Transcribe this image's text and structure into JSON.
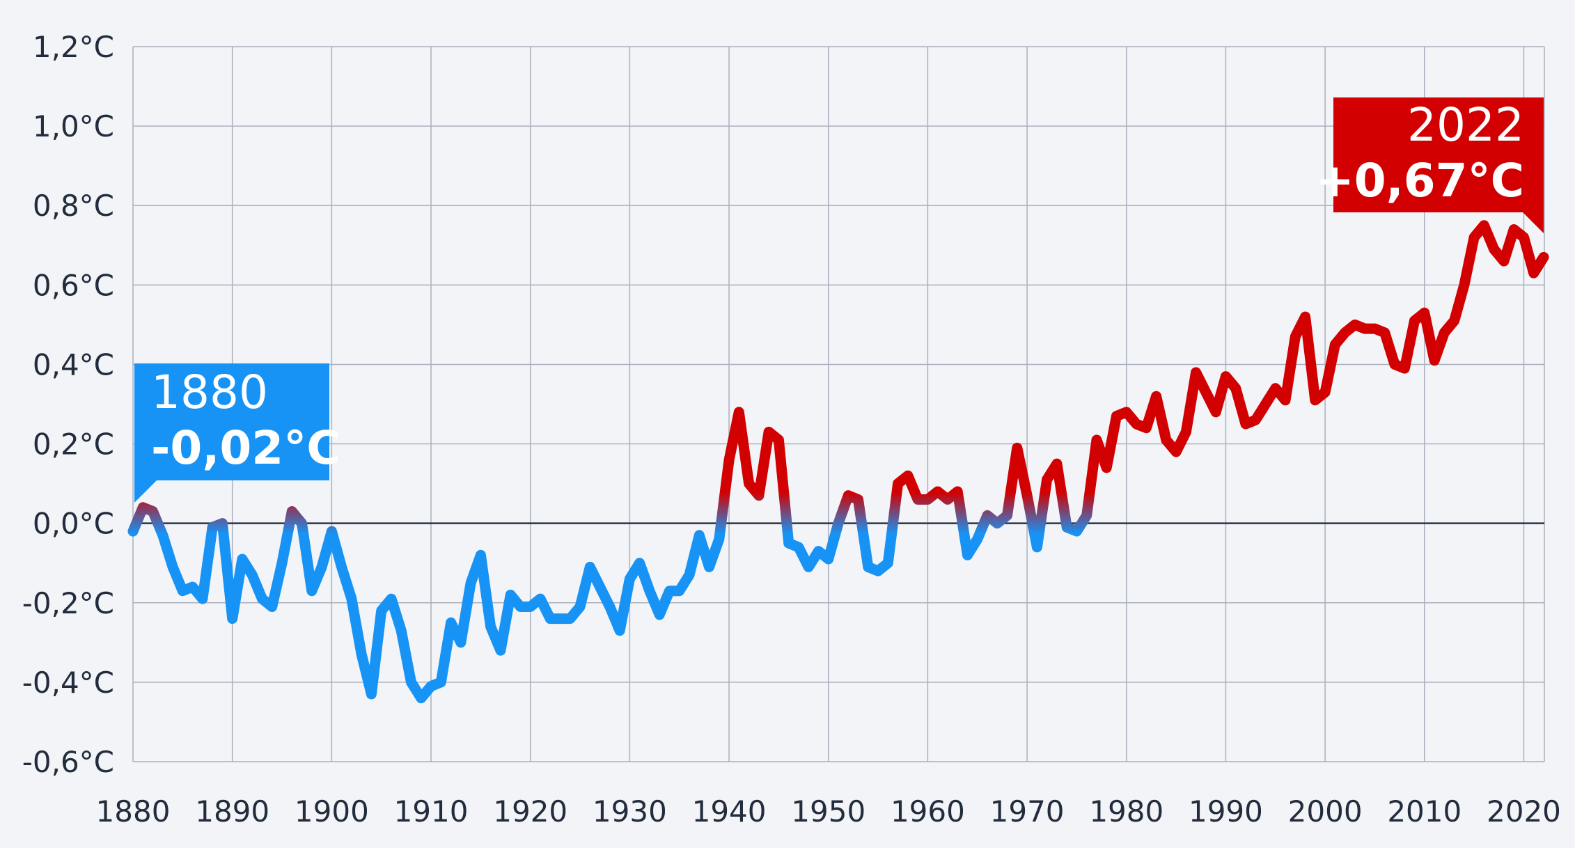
{
  "chart_data": {
    "type": "line",
    "title": "",
    "xlabel": "",
    "ylabel": "",
    "xlim": [
      1880,
      2022
    ],
    "ylim": [
      -0.6,
      1.2
    ],
    "grid": true,
    "x_ticks": [
      "1880",
      "1890",
      "1900",
      "1910",
      "1920",
      "1930",
      "1940",
      "1950",
      "1960",
      "1970",
      "1980",
      "1990",
      "2000",
      "2010",
      "2020"
    ],
    "y_ticks": [
      "-0,6°C",
      "-0,4°C",
      "-0,2°C",
      "0,0°C",
      "0,2°C",
      "0,4°C",
      "0,6°C",
      "0,8°C",
      "1,0°C",
      "1,2°C"
    ],
    "x_tick_values": [
      1880,
      1890,
      1900,
      1910,
      1920,
      1930,
      1940,
      1950,
      1960,
      1970,
      1980,
      1990,
      2000,
      2010,
      2020
    ],
    "y_tick_values": [
      -0.6,
      -0.4,
      -0.2,
      0.0,
      0.2,
      0.4,
      0.6,
      0.8,
      1.0,
      1.2
    ],
    "colors": {
      "positive": "#d20000",
      "negative": "#1793f5",
      "grid": "#aab0bd",
      "zero_line": "#2a3345",
      "text": "#222c3c"
    },
    "series": [
      {
        "x": [
          1880,
          1881,
          1882,
          1883,
          1884,
          1885,
          1886,
          1887,
          1888,
          1889,
          1890,
          1891,
          1892,
          1893,
          1894,
          1895,
          1896,
          1897,
          1898,
          1899,
          1900,
          1901,
          1902,
          1903,
          1904,
          1905,
          1906,
          1907,
          1908,
          1909,
          1910,
          1911,
          1912,
          1913,
          1914,
          1915,
          1916,
          1917,
          1918,
          1919,
          1920,
          1921,
          1922,
          1923,
          1924,
          1925,
          1926,
          1927,
          1928,
          1929,
          1930,
          1931,
          1932,
          1933,
          1934,
          1935,
          1936,
          1937,
          1938,
          1939,
          1940,
          1941,
          1942,
          1943,
          1944,
          1945,
          1946,
          1947,
          1948,
          1949,
          1950,
          1951,
          1952,
          1953,
          1954,
          1955,
          1956,
          1957,
          1958,
          1959,
          1960,
          1961,
          1962,
          1963,
          1964,
          1965,
          1966,
          1967,
          1968,
          1969,
          1970,
          1971,
          1972,
          1973,
          1974,
          1975,
          1976,
          1977,
          1978,
          1979,
          1980,
          1981,
          1982,
          1983,
          1984,
          1985,
          1986,
          1987,
          1988,
          1989,
          1990,
          1991,
          1992,
          1993,
          1994,
          1995,
          1996,
          1997,
          1998,
          1999,
          2000,
          2001,
          2002,
          2003,
          2004,
          2005,
          2006,
          2007,
          2008,
          2009,
          2010,
          2011,
          2012,
          2013,
          2014,
          2015,
          2016,
          2017,
          2018,
          2019,
          2020,
          2021,
          2022
        ],
        "values": [
          -0.02,
          0.04,
          0.03,
          -0.03,
          -0.11,
          -0.17,
          -0.16,
          -0.19,
          -0.01,
          0.0,
          -0.24,
          -0.09,
          -0.13,
          -0.19,
          -0.21,
          -0.1,
          0.03,
          0.0,
          -0.17,
          -0.11,
          -0.02,
          -0.11,
          -0.19,
          -0.33,
          -0.43,
          -0.22,
          -0.19,
          -0.27,
          -0.4,
          -0.44,
          -0.41,
          -0.4,
          -0.25,
          -0.3,
          -0.15,
          -0.08,
          -0.26,
          -0.32,
          -0.18,
          -0.21,
          -0.21,
          -0.19,
          -0.24,
          -0.24,
          -0.24,
          -0.21,
          -0.11,
          -0.16,
          -0.21,
          -0.27,
          -0.14,
          -0.1,
          -0.17,
          -0.23,
          -0.17,
          -0.17,
          -0.13,
          -0.03,
          -0.11,
          -0.04,
          0.16,
          0.28,
          0.1,
          0.07,
          0.23,
          0.21,
          -0.05,
          -0.06,
          -0.11,
          -0.07,
          -0.09,
          0.0,
          0.07,
          0.06,
          -0.11,
          -0.12,
          -0.1,
          0.1,
          0.12,
          0.06,
          0.06,
          0.08,
          0.06,
          0.08,
          -0.08,
          -0.04,
          0.02,
          0.0,
          0.02,
          0.19,
          0.07,
          -0.06,
          0.11,
          0.15,
          -0.01,
          -0.02,
          0.02,
          0.21,
          0.14,
          0.27,
          0.28,
          0.25,
          0.24,
          0.32,
          0.21,
          0.18,
          0.23,
          0.38,
          0.33,
          0.28,
          0.37,
          0.34,
          0.25,
          0.26,
          0.3,
          0.34,
          0.31,
          0.47,
          0.52,
          0.31,
          0.33,
          0.45,
          0.48,
          0.5,
          0.49,
          0.49,
          0.48,
          0.4,
          0.39,
          0.51,
          0.53,
          0.41,
          0.48,
          0.51,
          0.6,
          0.72,
          0.75,
          0.69,
          0.66,
          0.74,
          0.72,
          0.63,
          0.67
        ]
      }
    ],
    "annotations": [
      {
        "year": "1880",
        "value_label": "-0,02°C",
        "x": 1880,
        "y": -0.02
      },
      {
        "year": "2022",
        "value_label": "+0,67°C",
        "x": 2022,
        "y": 0.67
      }
    ]
  }
}
